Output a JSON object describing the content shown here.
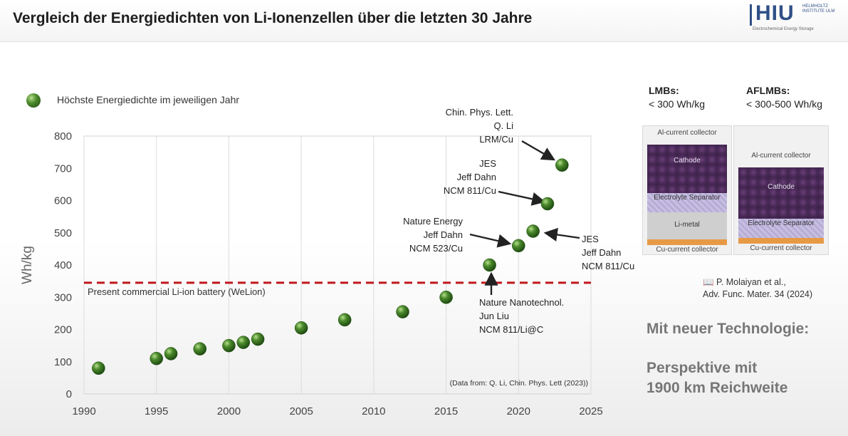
{
  "header": {
    "title": "Vergleich der Energiedichten von Li-Ionenzellen über die letzten 30 Jahre",
    "logo_text": "HIU",
    "logo_side": "HELMHOLTZ INSTITUTE ULM",
    "logo_sub": "Electrochemical Energy Storage"
  },
  "legend_label": "Höchste Energiedichte im jeweiligen Jahr",
  "chart_data": {
    "type": "scatter",
    "title": "",
    "xlabel": "",
    "ylabel": "Wh/kg",
    "xlim": [
      1990,
      2025
    ],
    "ylim": [
      0,
      800
    ],
    "xticks": [
      "1990",
      "1995",
      "2000",
      "2005",
      "2010",
      "2015",
      "2020",
      "2025"
    ],
    "yticks": [
      "0",
      "100",
      "200",
      "300",
      "400",
      "500",
      "600",
      "700",
      "800"
    ],
    "grid": "vertical",
    "series": [
      {
        "name": "Höchste Energiedichte im jeweiligen Jahr",
        "color": "#3f7a24",
        "points": [
          {
            "x": 1991,
            "y": 80
          },
          {
            "x": 1995,
            "y": 110
          },
          {
            "x": 1996,
            "y": 125
          },
          {
            "x": 1998,
            "y": 140
          },
          {
            "x": 2000,
            "y": 150
          },
          {
            "x": 2001,
            "y": 160
          },
          {
            "x": 2002,
            "y": 170
          },
          {
            "x": 2005,
            "y": 205
          },
          {
            "x": 2008,
            "y": 230
          },
          {
            "x": 2012,
            "y": 255
          },
          {
            "x": 2015,
            "y": 300
          },
          {
            "x": 2018,
            "y": 400
          },
          {
            "x": 2020,
            "y": 460
          },
          {
            "x": 2021,
            "y": 505
          },
          {
            "x": 2022,
            "y": 590
          },
          {
            "x": 2023,
            "y": 710
          }
        ]
      }
    ],
    "reference_line": {
      "y": 345,
      "label": "Present commercial Li-ion battery (WeLion)",
      "color": "#c0171b"
    },
    "annotations": [
      {
        "lines": [
          "Chin. Phys. Lett.",
          "Q. Li",
          "LRM/Cu"
        ],
        "target": {
          "x": 2023,
          "y": 710
        }
      },
      {
        "lines": [
          "JES",
          "Jeff Dahn",
          "NCM 811/Cu"
        ],
        "target": {
          "x": 2022,
          "y": 590
        }
      },
      {
        "lines": [
          "Nature Energy",
          "Jeff Dahn",
          "NCM 523/Cu"
        ],
        "target": {
          "x": 2020,
          "y": 460
        }
      },
      {
        "lines": [
          "JES",
          "Jeff Dahn",
          "NCM 811/Cu"
        ],
        "target": {
          "x": 2021,
          "y": 505
        }
      },
      {
        "lines": [
          "Nature Nanotechnol.",
          "Jun Liu",
          "NCM 811/Li@C"
        ],
        "target": {
          "x": 2018,
          "y": 400
        }
      }
    ],
    "source_note": "(Data from: Q. Li, Chin. Phys. Lett (2023))"
  },
  "side": {
    "lmb_title": "LMBs:",
    "lmb_value": "< 300 Wh/kg",
    "aflmb_title": "AFLMBs:",
    "aflmb_value": "< 300-500 Wh/kg",
    "diagram_left": {
      "al": "Al-current collector",
      "cathode": "Cathode",
      "separator": "Electrolyte Separator",
      "limetal": "Li-metal",
      "cu": "Cu-current collector"
    },
    "diagram_right": {
      "al": "Al-current collector",
      "cathode": "Cathode",
      "separator": "Electrolyte Separator",
      "cu": "Cu-current collector"
    },
    "citation_author": "P. Molaiyan et al.,",
    "citation_journal": "Adv. Func. Mater. 34 (2024)",
    "mit": "Mit neuer Technologie:",
    "perspective_1": "Perspektive mit",
    "perspective_2": "1900 km Reichweite"
  }
}
